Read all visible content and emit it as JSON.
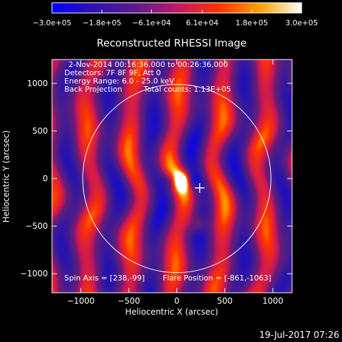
{
  "chart_data": {
    "type": "heatmap",
    "title": "Reconstructed RHESSI Image",
    "xlabel": "Heliocentric X (arcsec)",
    "ylabel": "Heliocentric Y (arcsec)",
    "xlim": [
      -1300,
      1200
    ],
    "ylim": [
      -1200,
      1250
    ],
    "x_ticks": [
      -1000,
      -500,
      0,
      500,
      1000
    ],
    "x_tick_labels": [
      "−1000",
      "−500",
      "0",
      "500",
      "1000"
    ],
    "y_ticks": [
      -1000,
      -500,
      0,
      500,
      1000
    ],
    "y_tick_labels": [
      "−1000",
      "−500",
      "0",
      "500",
      "1000"
    ],
    "colorbar": {
      "range": [
        -300000,
        300000
      ],
      "ticks": [
        -300000,
        -180000,
        -61000,
        61000,
        180000,
        300000
      ],
      "tick_labels": [
        "−3.0e+05",
        "−1.8e+05",
        "−6.1e+04",
        "6.1e+04",
        "1.8e+05",
        "3.0e+05"
      ],
      "colors": [
        "#0000ff",
        "#3010b0",
        "#5a1a8c",
        "#c0186a",
        "#ff3000",
        "#ffa000",
        "#ffffff"
      ]
    },
    "annotations": {
      "date_range": "2-Nov-2014 00:16:36.000 to 00:26:36.000",
      "detectors": "Detectors: 7F 8F 9F, Att 0",
      "energy_range": "Energy Range: 6.0 - 25.0 keV",
      "method": "Back Projection",
      "total_counts": "Total counts: 1.13E+05",
      "spin_axis": "Spin Axis = [238,-99]",
      "flare_position": "Flare Position = [-861,-1063]"
    },
    "solar_limb": {
      "center": [
        0,
        0
      ],
      "radius": 980
    },
    "marker": {
      "symbol": "+",
      "x": 238,
      "y": -99
    }
  },
  "footer": {
    "timestamp": "19-Jul-2017 07:26"
  }
}
